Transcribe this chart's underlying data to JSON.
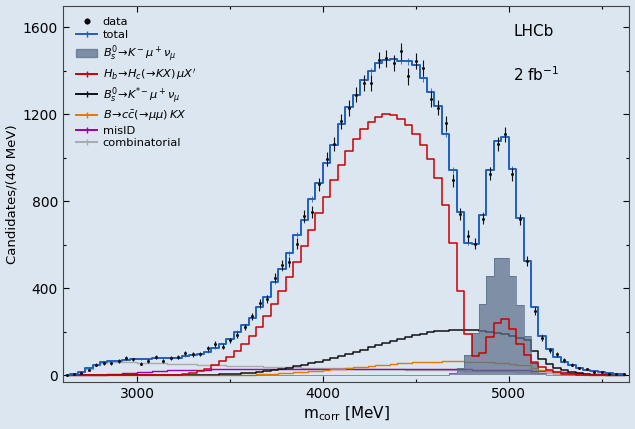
{
  "xlabel": "m$_{\\mathrm{corr}}$ [MeV]",
  "ylabel": "Candidates/(40 MeV)",
  "xlim": [
    2600,
    5650
  ],
  "ylim": [
    -30,
    1700
  ],
  "background_color": "#dce6f0",
  "yticks": [
    0,
    400,
    800,
    1200,
    1600
  ],
  "xticks": [
    3000,
    4000,
    5000
  ],
  "colors": {
    "data": "#111111",
    "total": "#2060c0",
    "Bs_signal": "#5a6e8a",
    "Hb": "#cc0000",
    "Bs_Kstar": "#111111",
    "Bcc": "#e07b00",
    "misID": "#9900aa",
    "combinatorial": "#aaaaaa"
  }
}
